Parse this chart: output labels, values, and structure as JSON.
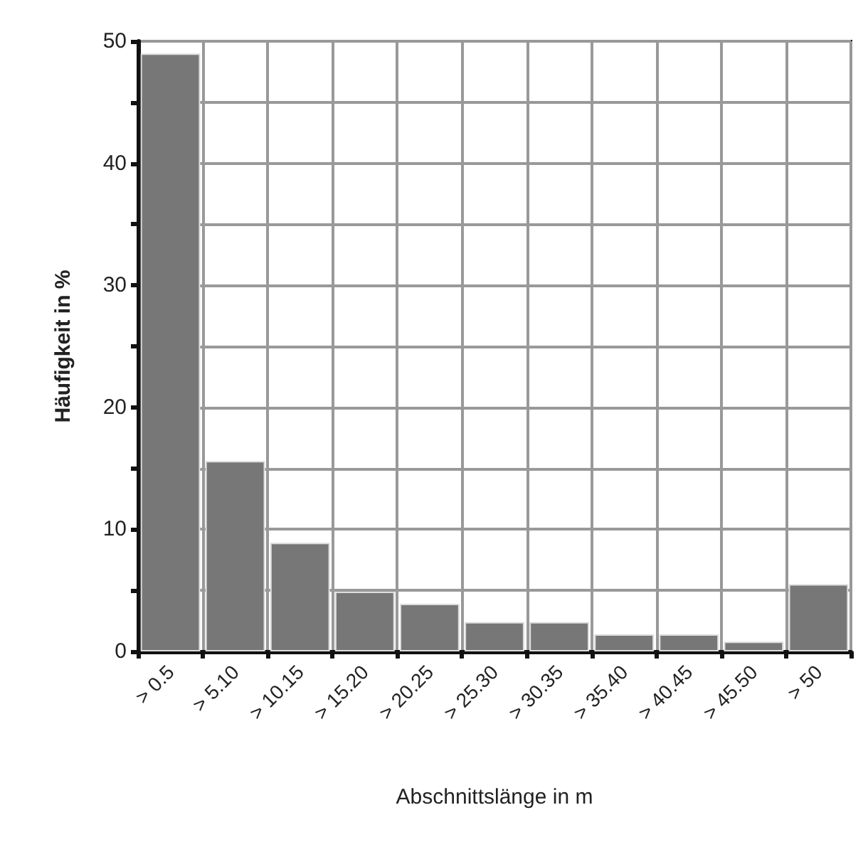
{
  "chart_data": {
    "type": "bar",
    "xlabel": "Abschnittslänge in m",
    "ylabel": "Häufigkeit in %",
    "categories": [
      "> 0.5",
      "> 5.10",
      "> 10.15",
      "> 15.20",
      "> 20.25",
      "> 25.30",
      "> 30.35",
      "> 35.40",
      "> 40.45",
      "> 45.50",
      "> 50"
    ],
    "values": [
      49,
      15.6,
      8.9,
      4.9,
      3.9,
      2.4,
      2.4,
      1.4,
      1.4,
      0.8,
      5.5
    ],
    "color": "#777777",
    "ylim": [
      0,
      50
    ],
    "yticks": [
      0,
      {
        "value": 5,
        "label": null
      },
      10,
      {
        "value": 15,
        "label": null
      },
      20,
      {
        "value": 25,
        "label": null
      },
      30,
      {
        "value": 35,
        "label": null
      },
      40,
      {
        "value": 45,
        "label": null
      },
      50
    ],
    "grid": true
  }
}
